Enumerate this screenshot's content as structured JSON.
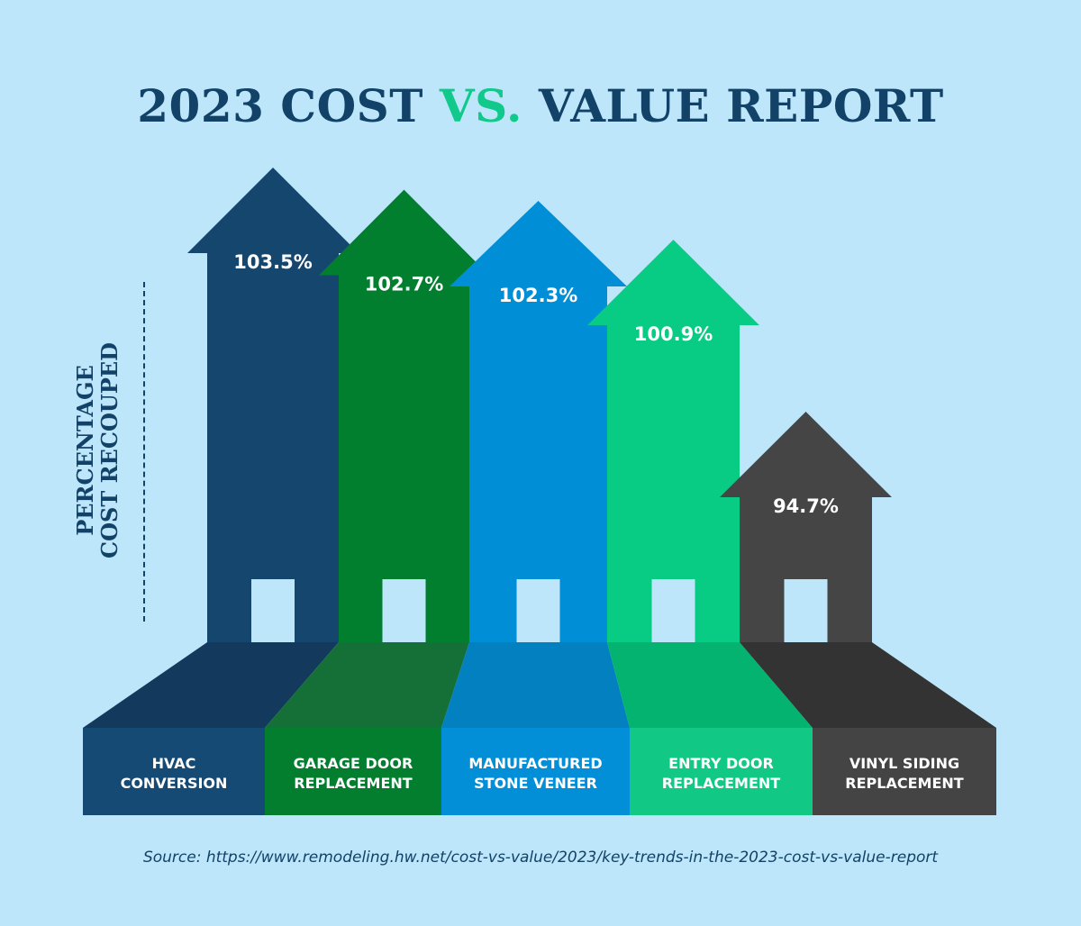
{
  "title": {
    "part1": "2023 COST ",
    "accent": "VS.",
    "part2": " VALUE REPORT"
  },
  "ylabel": {
    "line1": "PERCENTAGE",
    "line2": "COST RECOUPED"
  },
  "source": "Source: https://www.remodeling.hw.net/cost-vs-value/2023/key-trends-in-the-2023-cost-vs-value-report",
  "colors": {
    "background": "#bde6fb",
    "title": "#134268",
    "accent": "#10c98a"
  },
  "chart_data": {
    "type": "bar",
    "title": "2023 COST VS. VALUE REPORT",
    "ylabel": "PERCENTAGE COST RECOUPED",
    "xlabel": "",
    "value_format": "percent",
    "categories": [
      [
        "HVAC",
        "CONVERSION"
      ],
      [
        "GARAGE DOOR",
        "REPLACEMENT"
      ],
      [
        "MANUFACTURED",
        "STONE VENEER"
      ],
      [
        "ENTRY DOOR",
        "REPLACEMENT"
      ],
      [
        "VINYL SIDING",
        "REPLACEMENT"
      ]
    ],
    "values": [
      103.5,
      102.7,
      102.3,
      100.9,
      94.7
    ],
    "value_labels": [
      "103.5%",
      "102.7%",
      "102.3%",
      "100.9%",
      "94.7%"
    ],
    "bar_colors": [
      "#15466e",
      "#017e2e",
      "#008ed7",
      "#08cc83",
      "#454545"
    ],
    "floor_colors": [
      "#133a5c",
      "#147036",
      "#0280c0",
      "#04b370",
      "#333333"
    ],
    "label_colors": [
      "#154a75",
      "#037e2f",
      "#038fd8",
      "#11c985",
      "#444444"
    ],
    "grid": false,
    "legend": "none"
  }
}
